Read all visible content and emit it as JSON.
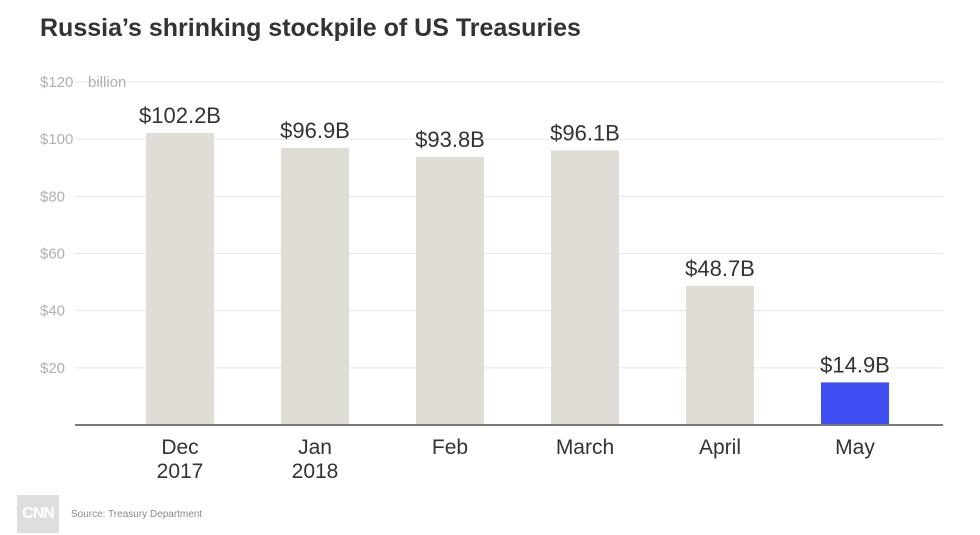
{
  "title": "Russia’s shrinking stockpile of US Treasuries",
  "source": "Source: Treasury Department",
  "logo": "CNN",
  "colors": {
    "bar": "#e0ddd6",
    "highlight": "#3d4df2",
    "grid": "#e6e6e6",
    "axis": "#777777",
    "tick_text": "#b0b0b0",
    "label_text": "#333333"
  },
  "chart_data": {
    "type": "bar",
    "title": "Russia’s shrinking stockpile of US Treasuries",
    "ylim": [
      0,
      120
    ],
    "yticks": [
      {
        "value": 20,
        "label": "$20"
      },
      {
        "value": 40,
        "label": "$40"
      },
      {
        "value": 60,
        "label": "$60"
      },
      {
        "value": 80,
        "label": "$80"
      },
      {
        "value": 100,
        "label": "$100"
      },
      {
        "value": 120,
        "label": "$120"
      }
    ],
    "yunit_label": "billion",
    "grid": true,
    "categories": [
      {
        "line1": "Dec",
        "line2": "2017"
      },
      {
        "line1": "Jan",
        "line2": "2018"
      },
      {
        "line1": "Feb",
        "line2": ""
      },
      {
        "line1": "March",
        "line2": ""
      },
      {
        "line1": "April",
        "line2": ""
      },
      {
        "line1": "May",
        "line2": ""
      }
    ],
    "values": [
      102.2,
      96.9,
      93.8,
      96.1,
      48.7,
      14.9
    ],
    "data_labels": [
      "$102.2B",
      "$96.9B",
      "$93.8B",
      "$96.1B",
      "$48.7B",
      "$14.9B"
    ],
    "highlight_index": 5
  }
}
